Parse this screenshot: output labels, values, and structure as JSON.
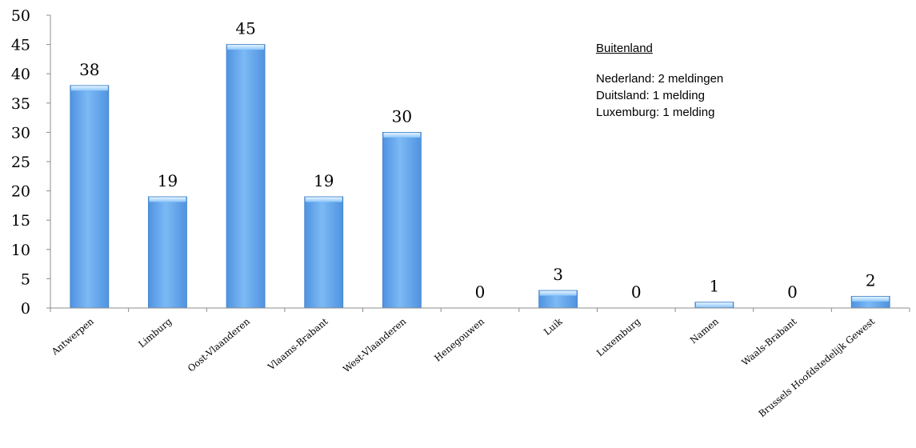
{
  "chart_data": {
    "type": "bar",
    "categories": [
      "Antwerpen",
      "Limburg",
      "Oost-Vlaanderen",
      "Vlaams-Brabant",
      "West-Vlaanderen",
      "Henegouwen",
      "Luik",
      "Luxemburg",
      "Namen",
      "Waals-Brabant",
      "Brussels Hoofdstedelijk Gewest"
    ],
    "values": [
      38,
      19,
      45,
      19,
      30,
      0,
      3,
      0,
      1,
      0,
      2
    ],
    "ylim": [
      0,
      50
    ],
    "yticks": [
      "0",
      "5",
      "10",
      "15",
      "20",
      "25",
      "30",
      "35",
      "40",
      "45",
      "50"
    ],
    "title": "",
    "xlabel": "",
    "ylabel": "",
    "bar_color": "#6aacf0",
    "grid": false,
    "legend": "none"
  },
  "annotation": {
    "title": "Buitenland",
    "lines": [
      "Nederland: 2 meldingen",
      "Duitsland: 1 melding",
      "Luxemburg: 1 melding"
    ]
  }
}
